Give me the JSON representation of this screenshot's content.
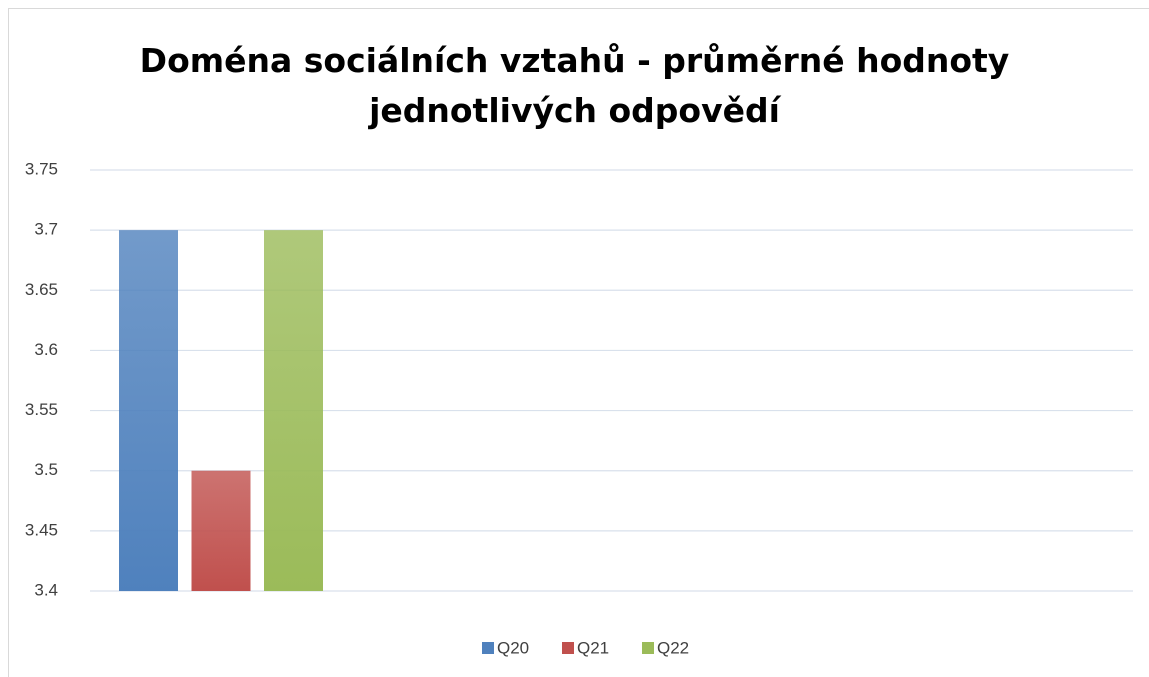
{
  "chart_data": {
    "type": "bar",
    "title": "Doména sociálních vztahů - průměrné hodnoty jednotlivých odpovědí",
    "categories": [
      null
    ],
    "series": [
      {
        "name": "Q20",
        "color": "#4f81bd",
        "values": [
          3.7
        ]
      },
      {
        "name": "Q21",
        "color": "#c0504d",
        "values": [
          3.5
        ]
      },
      {
        "name": "Q22",
        "color": "#9bbb59",
        "values": [
          3.7
        ]
      }
    ],
    "ylim": [
      3.4,
      3.75
    ],
    "yticks": [
      3.4,
      3.45,
      3.5,
      3.55,
      3.6,
      3.65,
      3.7,
      3.75
    ],
    "grid": true,
    "legend": "bottom"
  }
}
